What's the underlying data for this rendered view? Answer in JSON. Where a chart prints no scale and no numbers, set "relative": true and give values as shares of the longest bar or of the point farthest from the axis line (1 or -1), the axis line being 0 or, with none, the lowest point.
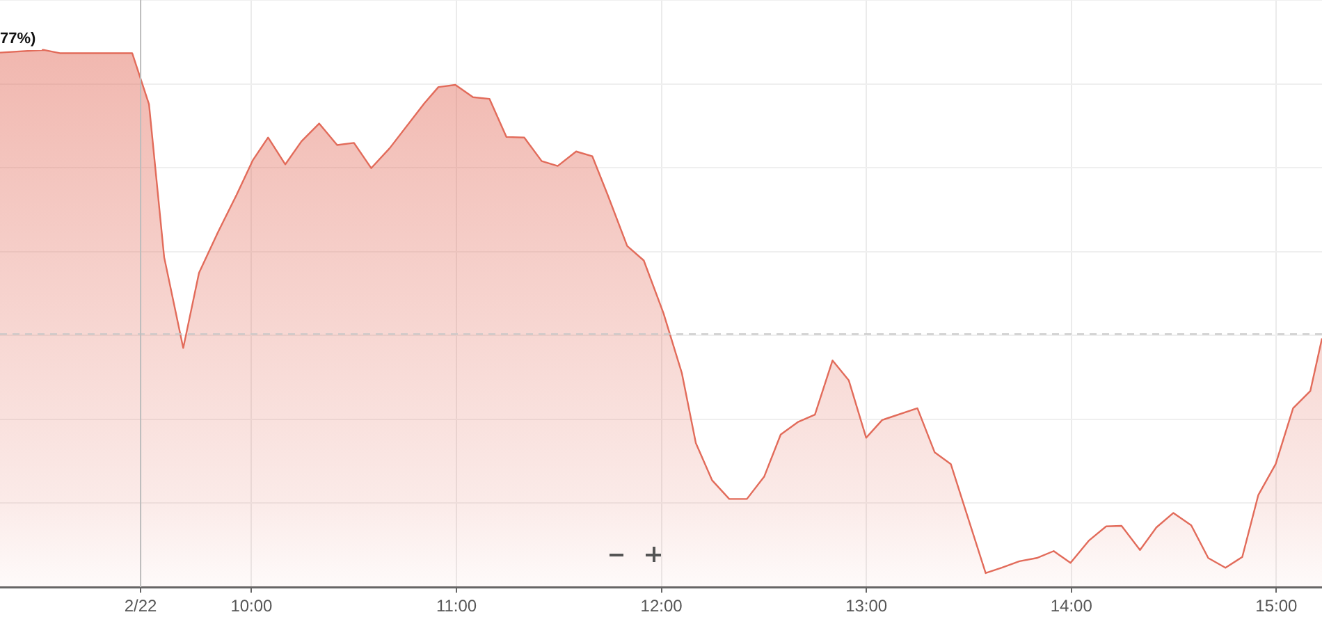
{
  "chart_data": {
    "type": "area",
    "relative": true,
    "color": "#e26b5a",
    "grid": true,
    "x": [
      8.773,
      8.988,
      9.065,
      9.418,
      9.5,
      9.574,
      9.667,
      9.744,
      9.837,
      9.927,
      10.007,
      10.081,
      10.165,
      10.244,
      10.33,
      10.418,
      10.5,
      10.584,
      10.674,
      10.844,
      10.912,
      10.995,
      11.081,
      11.161,
      11.244,
      11.331,
      11.416,
      11.494,
      11.584,
      11.663,
      11.738,
      11.833,
      11.914,
      12.01,
      12.1,
      12.168,
      12.247,
      12.331,
      12.417,
      12.502,
      12.582,
      12.665,
      12.749,
      12.835,
      12.914,
      12.999,
      13.077,
      13.249,
      13.333,
      13.412,
      13.582,
      13.661,
      13.747,
      13.831,
      13.914,
      13.996,
      14.087,
      14.17,
      14.245,
      14.335,
      14.415,
      14.498,
      14.585,
      14.668,
      14.752,
      14.834,
      14.912,
      14.997,
      15.082,
      15.166,
      15.223
    ],
    "values": [
      0.995,
      1,
      0.994,
      0.994,
      0.899,
      0.614,
      0.445,
      0.585,
      0.661,
      0.73,
      0.795,
      0.837,
      0.787,
      0.83,
      0.863,
      0.823,
      0.827,
      0.78,
      0.817,
      0.901,
      0.931,
      0.935,
      0.912,
      0.909,
      0.838,
      0.837,
      0.793,
      0.784,
      0.811,
      0.802,
      0.73,
      0.635,
      0.608,
      0.51,
      0.398,
      0.268,
      0.199,
      0.164,
      0.164,
      0.206,
      0.284,
      0.307,
      0.321,
      0.422,
      0.385,
      0.278,
      0.311,
      0.333,
      0.251,
      0.229,
      0.026,
      0.036,
      0.048,
      0.054,
      0.067,
      0.045,
      0.087,
      0.113,
      0.114,
      0.069,
      0.111,
      0.138,
      0.115,
      0.054,
      0.036,
      0.056,
      0.171,
      0.229,
      0.333,
      0.365,
      0.463
    ],
    "xlim": [
      8.773,
      15.223
    ],
    "xticks": [
      {
        "value": 9.459,
        "label": "2/22"
      },
      {
        "value": 10,
        "label": "10:00"
      },
      {
        "value": 11,
        "label": "11:00"
      },
      {
        "value": 12,
        "label": "12:00"
      },
      {
        "value": 13,
        "label": "13:00"
      },
      {
        "value": 14,
        "label": "14:00"
      },
      {
        "value": 15,
        "label": "15:00"
      }
    ],
    "ref_lines": [
      {
        "axis": "y",
        "value": 0.471,
        "color": "#c8c8c8",
        "line_style": "dashed"
      },
      {
        "axis": "x",
        "value": 9.459,
        "color": "#bdbdbd"
      }
    ],
    "annotations": [
      "77%)"
    ]
  }
}
